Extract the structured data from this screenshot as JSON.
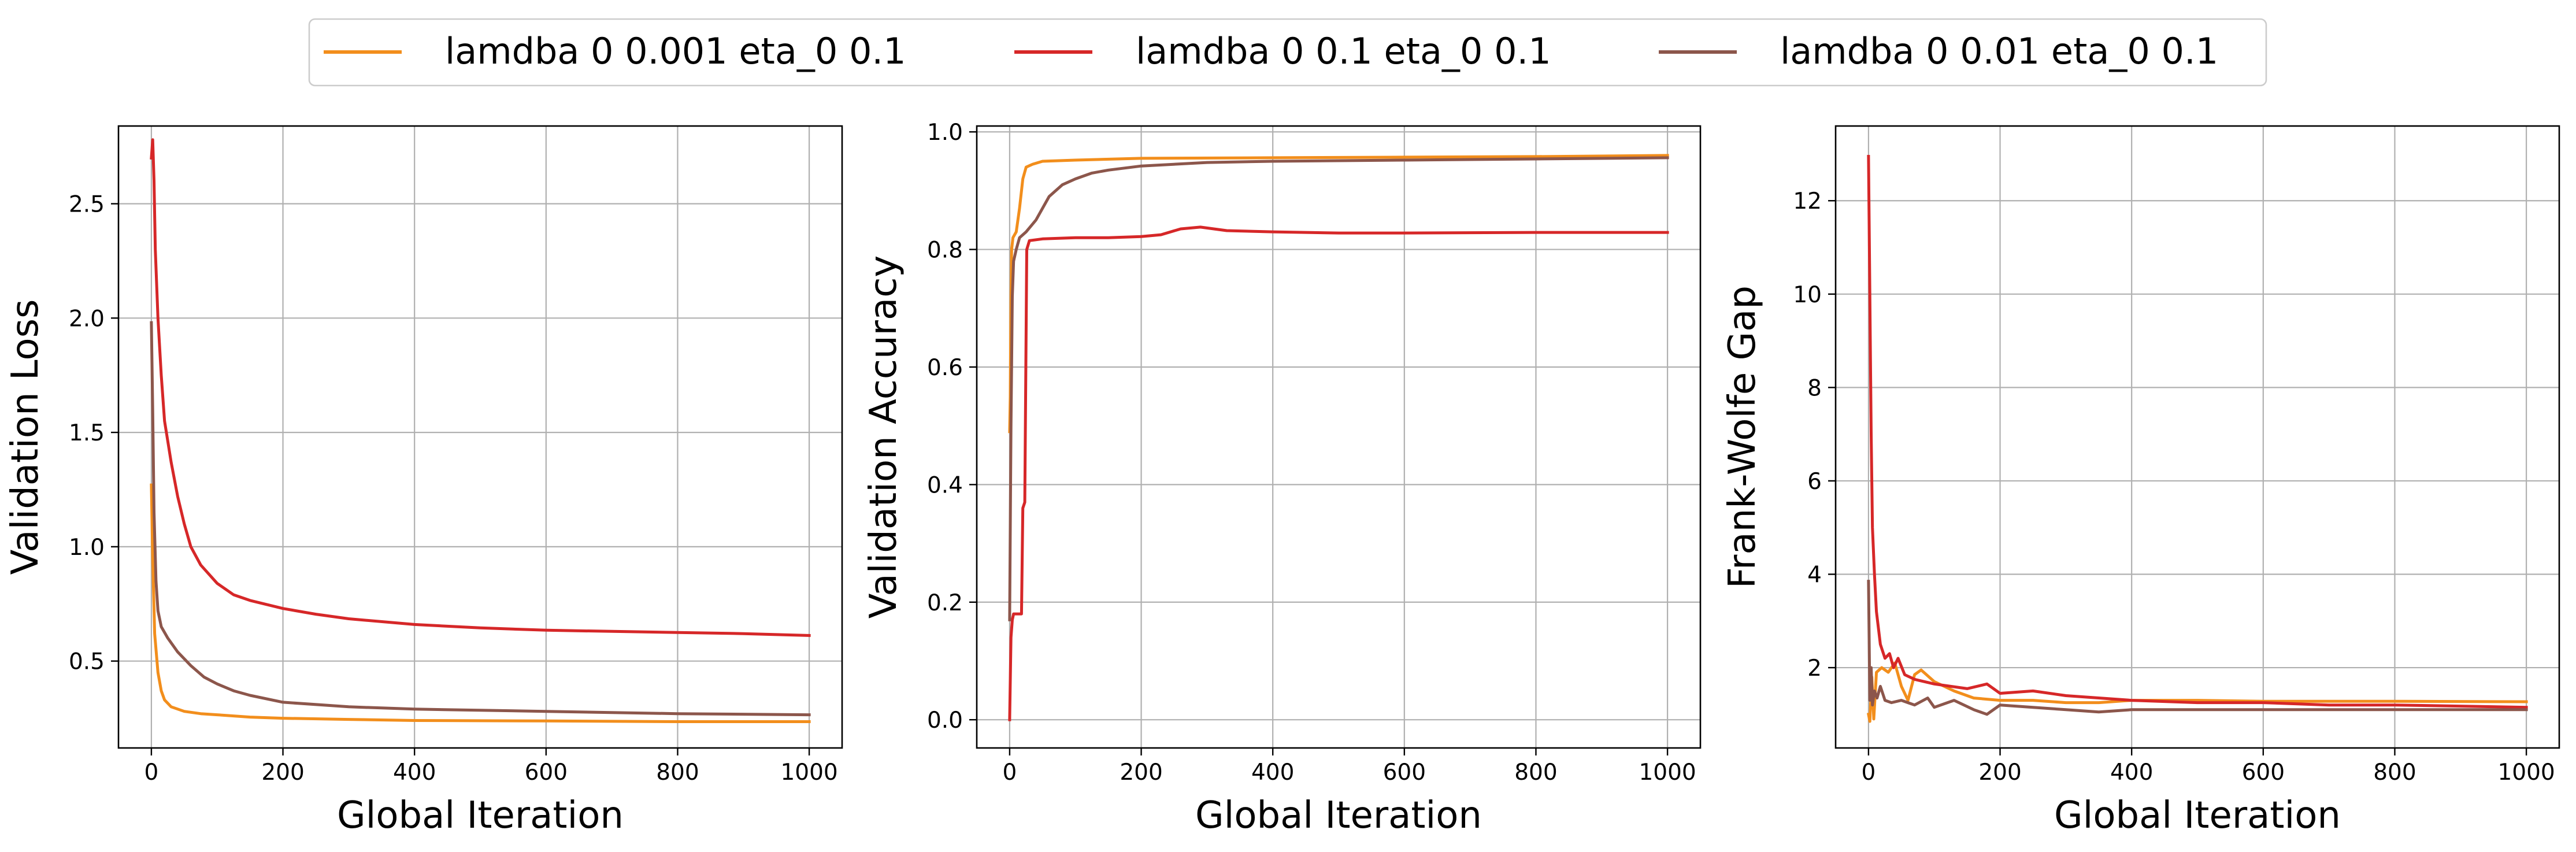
{
  "legend": {
    "placement": "top-center",
    "entries": [
      {
        "label": "lamdba 0 0.001 eta_0 0.1",
        "color": "#f28e1c"
      },
      {
        "label": "lamdba 0 0.1 eta_0 0.1",
        "color": "#d62728"
      },
      {
        "label": "lamdba 0 0.01 eta_0 0.1",
        "color": "#8c564b"
      }
    ]
  },
  "chart_data": [
    {
      "type": "line",
      "title": "",
      "xlabel": "Global Iteration",
      "ylabel": "Validation Loss",
      "xlim": [
        -50,
        1050
      ],
      "ylim": [
        0.12,
        2.84
      ],
      "xticks": [
        0,
        200,
        400,
        600,
        800,
        1000
      ],
      "xtick_labels": [
        "0",
        "200",
        "400",
        "600",
        "800",
        "1000"
      ],
      "yticks": [
        0.5,
        1.0,
        1.5,
        2.0,
        2.5
      ],
      "ytick_labels": [
        "0.5",
        "1.0",
        "1.5",
        "2.0",
        "2.5"
      ],
      "grid": true,
      "series": [
        {
          "name": "lamdba 0 0.001 eta_0 0.1",
          "color": "#f28e1c",
          "points": [
            [
              0,
              1.27
            ],
            [
              2,
              0.95
            ],
            [
              5,
              0.62
            ],
            [
              10,
              0.45
            ],
            [
              15,
              0.37
            ],
            [
              20,
              0.33
            ],
            [
              30,
              0.3
            ],
            [
              50,
              0.28
            ],
            [
              75,
              0.27
            ],
            [
              100,
              0.265
            ],
            [
              150,
              0.255
            ],
            [
              200,
              0.25
            ],
            [
              300,
              0.245
            ],
            [
              400,
              0.24
            ],
            [
              600,
              0.238
            ],
            [
              800,
              0.235
            ],
            [
              1000,
              0.235
            ]
          ]
        },
        {
          "name": "lamdba 0 0.1 eta_0 0.1",
          "color": "#d62728",
          "points": [
            [
              0,
              2.7
            ],
            [
              2,
              2.78
            ],
            [
              4,
              2.6
            ],
            [
              6,
              2.3
            ],
            [
              10,
              2.0
            ],
            [
              15,
              1.75
            ],
            [
              20,
              1.55
            ],
            [
              30,
              1.37
            ],
            [
              40,
              1.22
            ],
            [
              50,
              1.1
            ],
            [
              60,
              1.0
            ],
            [
              75,
              0.92
            ],
            [
              100,
              0.84
            ],
            [
              125,
              0.79
            ],
            [
              150,
              0.765
            ],
            [
              200,
              0.73
            ],
            [
              250,
              0.705
            ],
            [
              300,
              0.685
            ],
            [
              400,
              0.66
            ],
            [
              500,
              0.645
            ],
            [
              600,
              0.635
            ],
            [
              700,
              0.63
            ],
            [
              800,
              0.625
            ],
            [
              900,
              0.62
            ],
            [
              1000,
              0.612
            ]
          ]
        },
        {
          "name": "lamdba 0 0.01 eta_0 0.1",
          "color": "#8c564b",
          "points": [
            [
              0,
              1.98
            ],
            [
              2,
              1.6
            ],
            [
              4,
              1.15
            ],
            [
              7,
              0.85
            ],
            [
              10,
              0.72
            ],
            [
              15,
              0.65
            ],
            [
              25,
              0.6
            ],
            [
              40,
              0.54
            ],
            [
              60,
              0.48
            ],
            [
              80,
              0.43
            ],
            [
              100,
              0.4
            ],
            [
              125,
              0.37
            ],
            [
              150,
              0.35
            ],
            [
              200,
              0.32
            ],
            [
              300,
              0.3
            ],
            [
              400,
              0.29
            ],
            [
              600,
              0.28
            ],
            [
              800,
              0.27
            ],
            [
              1000,
              0.265
            ]
          ]
        }
      ]
    },
    {
      "type": "line",
      "title": "",
      "xlabel": "Global Iteration",
      "ylabel": "Validation Accuracy",
      "xlim": [
        -50,
        1050
      ],
      "ylim": [
        -0.048,
        1.01
      ],
      "xticks": [
        0,
        200,
        400,
        600,
        800,
        1000
      ],
      "xtick_labels": [
        "0",
        "200",
        "400",
        "600",
        "800",
        "1000"
      ],
      "yticks": [
        0.0,
        0.2,
        0.4,
        0.6,
        0.8,
        1.0
      ],
      "ytick_labels": [
        "0.0",
        "0.2",
        "0.4",
        "0.6",
        "0.8",
        "1.0"
      ],
      "grid": true,
      "series": [
        {
          "name": "lamdba 0 0.001 eta_0 0.1",
          "color": "#f28e1c",
          "points": [
            [
              0,
              0.49
            ],
            [
              1,
              0.55
            ],
            [
              2,
              0.72
            ],
            [
              3,
              0.8
            ],
            [
              5,
              0.82
            ],
            [
              10,
              0.83
            ],
            [
              15,
              0.87
            ],
            [
              20,
              0.92
            ],
            [
              25,
              0.94
            ],
            [
              35,
              0.945
            ],
            [
              50,
              0.95
            ],
            [
              100,
              0.952
            ],
            [
              200,
              0.955
            ],
            [
              400,
              0.956
            ],
            [
              600,
              0.957
            ],
            [
              800,
              0.958
            ],
            [
              1000,
              0.96
            ]
          ]
        },
        {
          "name": "lamdba 0 0.1 eta_0 0.1",
          "color": "#d62728",
          "points": [
            [
              0,
              0.0
            ],
            [
              2,
              0.14
            ],
            [
              4,
              0.17
            ],
            [
              6,
              0.18
            ],
            [
              18,
              0.18
            ],
            [
              20,
              0.36
            ],
            [
              23,
              0.37
            ],
            [
              26,
              0.8
            ],
            [
              30,
              0.815
            ],
            [
              50,
              0.818
            ],
            [
              100,
              0.82
            ],
            [
              150,
              0.82
            ],
            [
              200,
              0.822
            ],
            [
              230,
              0.825
            ],
            [
              260,
              0.835
            ],
            [
              290,
              0.838
            ],
            [
              330,
              0.832
            ],
            [
              400,
              0.83
            ],
            [
              500,
              0.828
            ],
            [
              600,
              0.828
            ],
            [
              800,
              0.829
            ],
            [
              1000,
              0.829
            ]
          ]
        },
        {
          "name": "lamdba 0 0.01 eta_0 0.1",
          "color": "#8c564b",
          "points": [
            [
              0,
              0.17
            ],
            [
              2,
              0.5
            ],
            [
              4,
              0.72
            ],
            [
              6,
              0.78
            ],
            [
              10,
              0.8
            ],
            [
              15,
              0.82
            ],
            [
              25,
              0.83
            ],
            [
              40,
              0.85
            ],
            [
              60,
              0.89
            ],
            [
              80,
              0.91
            ],
            [
              100,
              0.92
            ],
            [
              125,
              0.93
            ],
            [
              150,
              0.935
            ],
            [
              200,
              0.942
            ],
            [
              300,
              0.948
            ],
            [
              400,
              0.95
            ],
            [
              600,
              0.952
            ],
            [
              800,
              0.954
            ],
            [
              1000,
              0.956
            ]
          ]
        }
      ]
    },
    {
      "type": "line",
      "title": "",
      "xlabel": "Global Iteration",
      "ylabel": "Frank-Wolfe Gap",
      "xlim": [
        -50,
        1050
      ],
      "ylim": [
        0.28,
        13.6
      ],
      "xticks": [
        0,
        200,
        400,
        600,
        800,
        1000
      ],
      "xtick_labels": [
        "0",
        "200",
        "400",
        "600",
        "800",
        "1000"
      ],
      "yticks": [
        2,
        4,
        6,
        8,
        10,
        12
      ],
      "ytick_labels": [
        "2",
        "4",
        "6",
        "8",
        "10",
        "12"
      ],
      "grid": true,
      "series": [
        {
          "name": "lamdba 0 0.001 eta_0 0.1",
          "color": "#f28e1c",
          "points": [
            [
              0,
              1.0
            ],
            [
              2,
              0.85
            ],
            [
              5,
              1.8
            ],
            [
              8,
              0.9
            ],
            [
              12,
              1.9
            ],
            [
              20,
              2.0
            ],
            [
              30,
              1.9
            ],
            [
              40,
              2.1
            ],
            [
              50,
              1.6
            ],
            [
              60,
              1.3
            ],
            [
              70,
              1.85
            ],
            [
              80,
              1.95
            ],
            [
              100,
              1.7
            ],
            [
              130,
              1.5
            ],
            [
              160,
              1.35
            ],
            [
              200,
              1.3
            ],
            [
              250,
              1.3
            ],
            [
              300,
              1.25
            ],
            [
              350,
              1.25
            ],
            [
              400,
              1.3
            ],
            [
              500,
              1.3
            ],
            [
              600,
              1.28
            ],
            [
              800,
              1.28
            ],
            [
              1000,
              1.27
            ]
          ]
        },
        {
          "name": "lamdba 0 0.1 eta_0 0.1",
          "color": "#d62728",
          "points": [
            [
              0,
              12.95
            ],
            [
              2,
              10.0
            ],
            [
              4,
              7.0
            ],
            [
              6,
              5.0
            ],
            [
              9,
              4.0
            ],
            [
              12,
              3.2
            ],
            [
              18,
              2.5
            ],
            [
              25,
              2.2
            ],
            [
              32,
              2.3
            ],
            [
              38,
              2.0
            ],
            [
              45,
              2.2
            ],
            [
              55,
              1.85
            ],
            [
              70,
              1.75
            ],
            [
              100,
              1.65
            ],
            [
              150,
              1.55
            ],
            [
              180,
              1.65
            ],
            [
              200,
              1.45
            ],
            [
              250,
              1.5
            ],
            [
              300,
              1.4
            ],
            [
              400,
              1.3
            ],
            [
              500,
              1.25
            ],
            [
              600,
              1.25
            ],
            [
              700,
              1.2
            ],
            [
              800,
              1.2
            ],
            [
              1000,
              1.15
            ]
          ]
        },
        {
          "name": "lamdba 0 0.01 eta_0 0.1",
          "color": "#8c564b",
          "points": [
            [
              0,
              3.85
            ],
            [
              2,
              1.3
            ],
            [
              4,
              2.0
            ],
            [
              6,
              1.2
            ],
            [
              9,
              1.5
            ],
            [
              13,
              1.35
            ],
            [
              18,
              1.6
            ],
            [
              25,
              1.3
            ],
            [
              35,
              1.25
            ],
            [
              50,
              1.3
            ],
            [
              70,
              1.2
            ],
            [
              90,
              1.35
            ],
            [
              100,
              1.15
            ],
            [
              130,
              1.3
            ],
            [
              160,
              1.1
            ],
            [
              180,
              1.0
            ],
            [
              200,
              1.2
            ],
            [
              250,
              1.15
            ],
            [
              300,
              1.1
            ],
            [
              350,
              1.05
            ],
            [
              400,
              1.1
            ],
            [
              500,
              1.1
            ],
            [
              600,
              1.1
            ],
            [
              800,
              1.1
            ],
            [
              1000,
              1.1
            ]
          ]
        }
      ]
    }
  ]
}
